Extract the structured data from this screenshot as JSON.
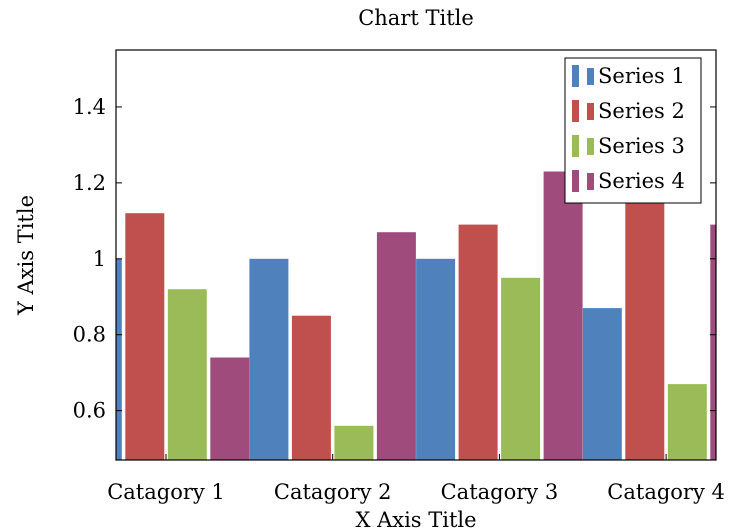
{
  "chart_data": {
    "type": "bar",
    "title": "Chart Title",
    "xlabel": "X Axis Title",
    "ylabel": "Y Axis Title",
    "categories": [
      "Catagory 1",
      "Catagory 2",
      "Catagory 3",
      "Catagory 4"
    ],
    "series": [
      {
        "name": "Series 1",
        "color": "#4f81bd",
        "values": [
          1.0,
          1.0,
          1.0,
          0.87
        ]
      },
      {
        "name": "Series 2",
        "color": "#c0504d",
        "values": [
          1.12,
          0.85,
          1.09,
          1.2
        ]
      },
      {
        "name": "Series 3",
        "color": "#9bbb59",
        "values": [
          0.92,
          0.56,
          0.95,
          0.67
        ]
      },
      {
        "name": "Series 4",
        "color": "#9f4c7c",
        "values": [
          0.74,
          1.07,
          1.23,
          1.09
        ]
      }
    ],
    "ylim": [
      0.47,
      1.55
    ],
    "yticks": [
      0.6,
      0.8,
      1,
      1.2,
      1.4
    ],
    "ytick_labels": [
      "0.6",
      "0.8",
      "1",
      "1.2",
      "1.4"
    ],
    "legend_position": "top-right",
    "grid": false
  }
}
